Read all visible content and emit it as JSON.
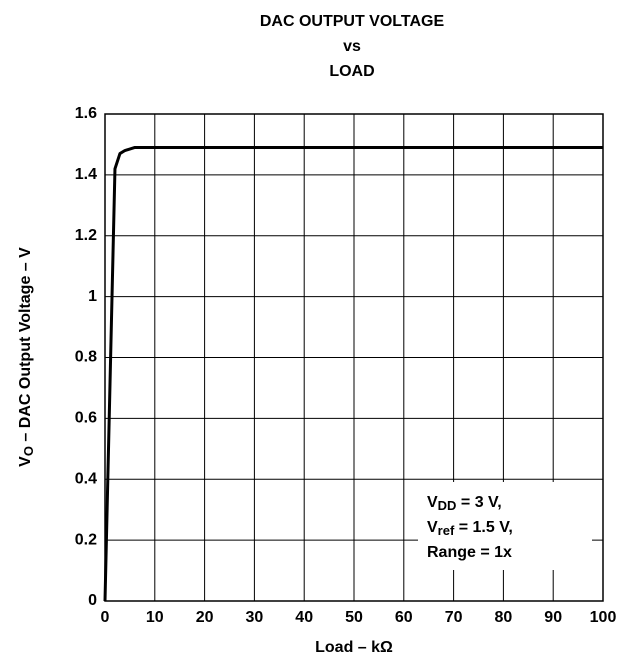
{
  "chart_data": {
    "type": "line",
    "title": [
      "DAC OUTPUT VOLTAGE",
      "vs",
      "LOAD"
    ],
    "xlabel": "Load – kΩ",
    "ylabel": {
      "main": "V",
      "sub": "O",
      "rest": " – DAC Output Voltage – V"
    },
    "annotation": [
      {
        "main": "V",
        "sub": "DD",
        "rest": " = 3 V,"
      },
      {
        "main": "V",
        "sub": "ref",
        "rest": " = 1.5 V,"
      },
      {
        "main": "Range = 1x",
        "sub": "",
        "rest": ""
      }
    ],
    "x": [
      0,
      2,
      3,
      4,
      6,
      100
    ],
    "series": [
      {
        "color": "#000000",
        "values": [
          0,
          1.42,
          1.47,
          1.48,
          1.49,
          1.49
        ]
      }
    ],
    "xlim": [
      0,
      100
    ],
    "xticks": [
      0,
      10,
      20,
      30,
      40,
      50,
      60,
      70,
      80,
      90,
      100
    ],
    "ylim": [
      0,
      1.6
    ],
    "yticks": [
      0,
      0.2,
      0.4,
      0.6,
      0.8,
      1,
      1.2,
      1.4,
      1.6
    ],
    "grid": true
  }
}
